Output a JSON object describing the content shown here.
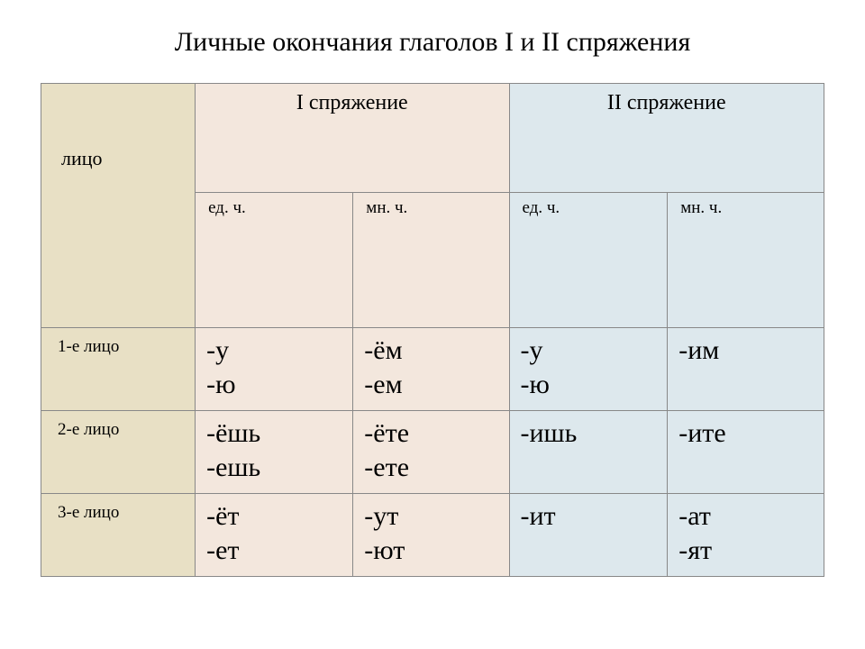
{
  "title": "Личные окончания глаголов I и II спряжения",
  "corner_label": "лицо",
  "conj1_label": "I спряжение",
  "conj2_label": "II спряжение",
  "sg_label": "ед. ч.",
  "pl_label": "мн. ч.",
  "rows": {
    "r1": {
      "label": "1-е лицо",
      "c1sg": "-у\n-ю",
      "c1pl": "-ём\n-ем",
      "c2sg": "-у\n-ю",
      "c2pl": "-им"
    },
    "r2": {
      "label": "2-е лицо",
      "c1sg": "-ёшь\n-ешь",
      "c1pl": "-ёте\n-ете",
      "c2sg": "-ишь",
      "c2pl": "-ите"
    },
    "r3": {
      "label": "3-е лицо",
      "c1sg": "-ёт\n-ет",
      "c1pl": "-ут\n-ют",
      "c2sg": "-ит",
      "c2pl": "-ат\n-ят"
    }
  },
  "colors": {
    "row_header_bg": "#e8e0c5",
    "conj1_bg": "#f3e7dd",
    "conj2_bg": "#dde8ed",
    "border": "#888888",
    "text": "#000000",
    "page_bg": "#ffffff"
  },
  "fonts": {
    "title_pt": 30,
    "header_pt": 24,
    "subheader_pt": 19,
    "rowlabel_pt": 19,
    "data_pt": 30
  }
}
